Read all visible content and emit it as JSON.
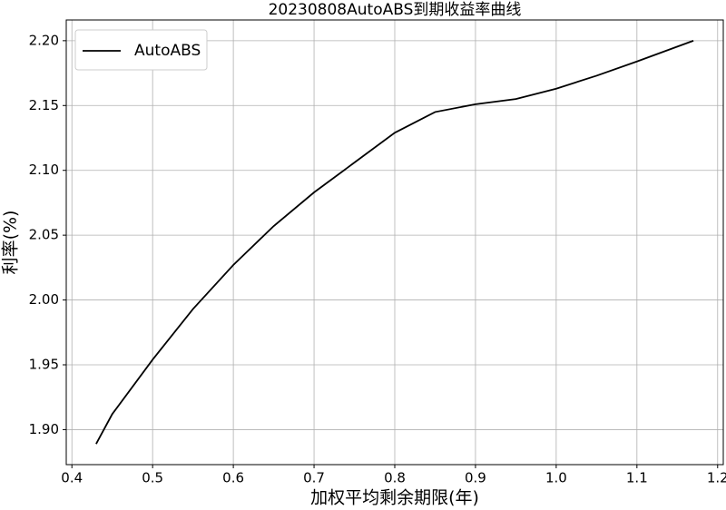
{
  "chart_data": {
    "type": "line",
    "title": "20230808AutoABS到期收益率曲线",
    "x_label": "加权平均剩余期限(年)",
    "y_label": "利率(%)",
    "x": [
      0.43,
      0.45,
      0.5,
      0.55,
      0.6,
      0.65,
      0.7,
      0.75,
      0.8,
      0.85,
      0.9,
      0.95,
      1.0,
      1.05,
      1.1,
      1.17
    ],
    "series": [
      {
        "name": "AutoABS",
        "color": "#000000",
        "values": [
          1.889,
          1.912,
          1.954,
          1.993,
          2.027,
          2.057,
          2.083,
          2.106,
          2.129,
          2.145,
          2.151,
          2.155,
          2.163,
          2.173,
          2.184,
          2.2
        ]
      }
    ],
    "xlim": [
      0.393,
      1.207
    ],
    "ylim": [
      1.873,
      2.216
    ],
    "xticks": [
      0.4,
      0.5,
      0.6,
      0.7,
      0.8,
      0.9,
      {
        "value": 1.0,
        "label": "1.0"
      },
      1.1,
      1.2
    ],
    "yticks": [
      {
        "value": 1.9,
        "label": "1.90"
      },
      1.95,
      {
        "value": 2.0,
        "label": "2.00"
      },
      2.05,
      {
        "value": 2.1,
        "label": "2.10"
      },
      2.15,
      {
        "value": 2.2,
        "label": "2.20"
      }
    ],
    "grid": true,
    "legend": "upper-left"
  }
}
